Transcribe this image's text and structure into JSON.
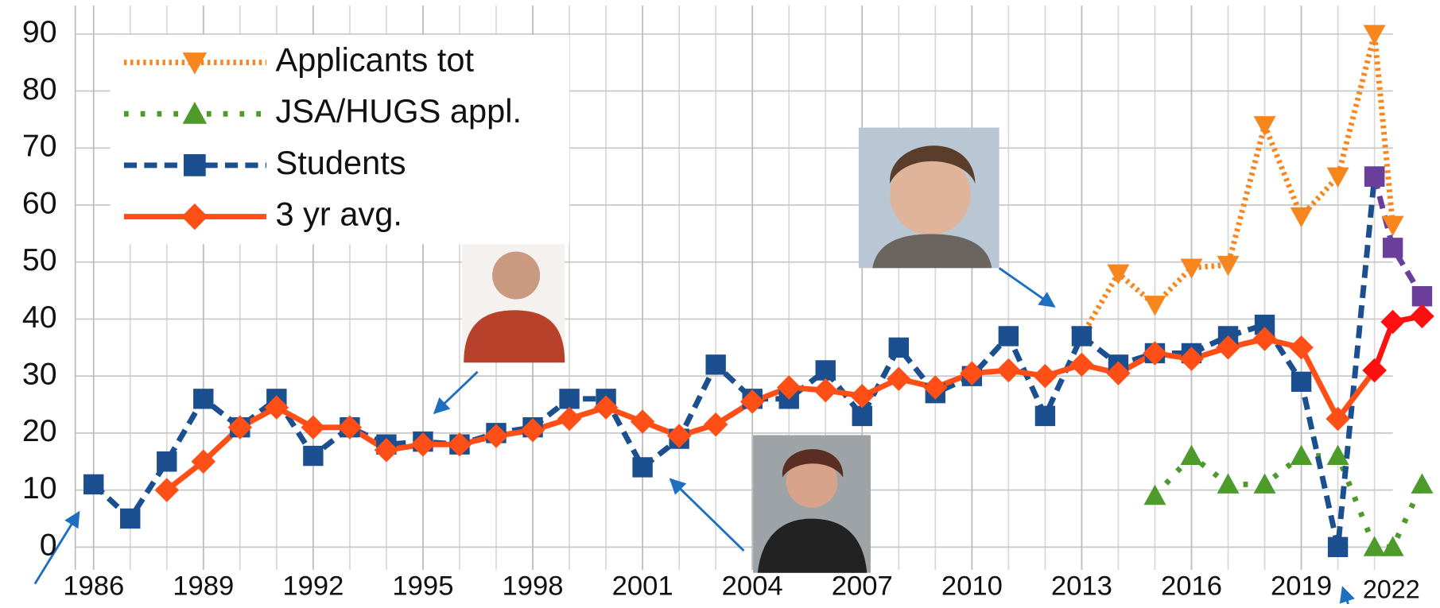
{
  "chart_data": {
    "type": "line",
    "annotations": [
      "2022"
    ],
    "xlim": [
      1985.5,
      2021.5
    ],
    "xticks": [
      1986,
      1989,
      1992,
      1995,
      1998,
      2001,
      2004,
      2007,
      2010,
      2013,
      2016,
      2019
    ],
    "ylim": [
      -4,
      95
    ],
    "yticks": [
      0,
      10,
      20,
      30,
      40,
      50,
      60,
      70,
      80,
      90
    ],
    "grid": true,
    "legend": "upper left",
    "series": [
      {
        "name": "Applicants tot",
        "color": "#f7861f",
        "line_style": "dotted",
        "marker": "triangle-down",
        "x": [
          2013,
          2014,
          2015,
          2016,
          2017,
          2018,
          2019,
          2020,
          2021,
          2021.5
        ],
        "values": [
          37,
          48,
          42.5,
          49,
          49.5,
          74,
          58,
          65,
          90,
          56.5
        ]
      },
      {
        "name": "JSA/HUGS appl.",
        "color": "#4e9a2a",
        "line_style": "dotted-wide",
        "marker": "triangle-up",
        "x": [
          2015,
          2016,
          2017,
          2018,
          2019,
          2020,
          2021,
          2021.5,
          2022.3
        ],
        "values": [
          9,
          16,
          11,
          11,
          16,
          16,
          0,
          0,
          11
        ]
      },
      {
        "name": "Students",
        "color": "#1c4f8f",
        "line_style": "dashed",
        "marker": "square",
        "x": [
          1986,
          1987,
          1988,
          1989,
          1990,
          1991,
          1992,
          1993,
          1994,
          1995,
          1996,
          1997,
          1998,
          1999,
          2000,
          2001,
          2002,
          2003,
          2004,
          2005,
          2006,
          2007,
          2008,
          2009,
          2010,
          2011,
          2012,
          2013,
          2014,
          2015,
          2016,
          2017,
          2018,
          2019,
          2020,
          2021
        ],
        "values": [
          11,
          5,
          15,
          26,
          21,
          26,
          16,
          21,
          18,
          18.5,
          18,
          20,
          21,
          26,
          26,
          14,
          19,
          32,
          26,
          26,
          31,
          23,
          35,
          27,
          30,
          37,
          23,
          37,
          32,
          34,
          34,
          37,
          39,
          29,
          0,
          65
        ]
      },
      {
        "name": "3 yr avg.",
        "color": "#ff4f17",
        "line_style": "solid",
        "marker": "diamond",
        "x": [
          1988,
          1989,
          1990,
          1991,
          1992,
          1993,
          1994,
          1995,
          1996,
          1997,
          1998,
          1999,
          2000,
          2001,
          2002,
          2003,
          2004,
          2005,
          2006,
          2007,
          2008,
          2009,
          2010,
          2011,
          2012,
          2013,
          2014,
          2015,
          2016,
          2017,
          2018,
          2019,
          2020,
          2021
        ],
        "values": [
          10,
          15,
          21,
          24.5,
          21,
          21,
          17,
          18,
          18,
          19.5,
          20.5,
          22.5,
          24.5,
          22,
          19.5,
          21.5,
          25.5,
          28,
          27.5,
          26.5,
          29.5,
          28,
          30.5,
          31,
          30,
          32,
          30.5,
          34,
          33,
          35,
          36.5,
          35,
          22.5,
          31
        ]
      },
      {
        "color": "#6a3f9c",
        "line_style": "dashed",
        "marker": "square",
        "x": [
          2021,
          2021.5,
          2022.3
        ],
        "values": [
          65,
          52.5,
          44
        ]
      },
      {
        "color": "#ff1010",
        "line_style": "solid",
        "marker": "diamond",
        "x": [
          2021,
          2021.5,
          2022.3
        ],
        "values": [
          31,
          39.5,
          40.5
        ]
      }
    ]
  }
}
